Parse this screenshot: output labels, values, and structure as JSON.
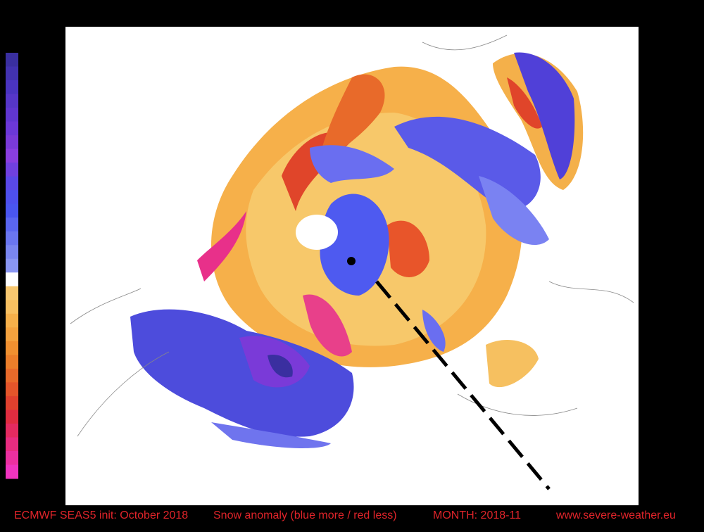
{
  "footer": {
    "model": "ECMWF SEAS5 init: October 2018",
    "variable": "Snow anomaly (blue more / red less)",
    "month": "MONTH: 2018-11",
    "source": "www.severe-weather.eu"
  }
}
